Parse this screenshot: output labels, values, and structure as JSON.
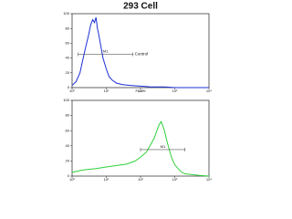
{
  "chart_data": [
    {
      "type": "line",
      "title": "293 Cell",
      "xlabel": "FL1-H",
      "xscale": "log",
      "xlim": [
        1,
        10000
      ],
      "ylim": [
        0,
        100
      ],
      "xticks": [
        {
          "value": 1,
          "label": "10⁰"
        },
        {
          "value": 10,
          "label": "10¹"
        },
        {
          "value": 100,
          "label": "10²"
        },
        {
          "value": 1000,
          "label": "10³"
        },
        {
          "value": 10000,
          "label": "10⁴"
        }
      ],
      "yticks": [
        0,
        20,
        40,
        60,
        80,
        100
      ],
      "x": [
        1,
        1.3,
        1.7,
        2,
        2.5,
        3,
        3.5,
        4,
        4.5,
        5,
        5.5,
        6,
        7,
        8,
        10,
        12,
        15,
        20,
        30,
        50,
        100,
        200,
        500,
        1000,
        10000
      ],
      "series": [
        {
          "color": "#1a2fd6",
          "values": [
            3,
            8,
            20,
            35,
            55,
            70,
            85,
            92,
            88,
            95,
            80,
            72,
            55,
            40,
            25,
            15,
            10,
            6,
            4,
            3,
            2,
            1,
            1,
            0,
            0
          ]
        }
      ],
      "gates": [
        {
          "label": "M1",
          "range": [
            1.5,
            60
          ],
          "level": 45,
          "note": "Control"
        }
      ]
    },
    {
      "type": "line",
      "xscale": "log",
      "xlim": [
        1,
        10000
      ],
      "ylim": [
        0,
        100
      ],
      "xticks": [
        {
          "value": 1,
          "label": "10⁰"
        },
        {
          "value": 10,
          "label": "10¹"
        },
        {
          "value": 100,
          "label": "10²"
        },
        {
          "value": 1000,
          "label": "10³"
        },
        {
          "value": 10000,
          "label": "10⁴"
        }
      ],
      "yticks": [
        0,
        20,
        40,
        60,
        80,
        100
      ],
      "x": [
        1,
        2,
        5,
        10,
        20,
        40,
        70,
        100,
        150,
        200,
        250,
        300,
        350,
        400,
        450,
        500,
        600,
        800,
        1000,
        1500,
        2000,
        5000,
        10000
      ],
      "series": [
        {
          "color": "#2fd13a",
          "values": [
            5,
            8,
            10,
            12,
            14,
            16,
            20,
            25,
            32,
            42,
            50,
            60,
            68,
            72,
            66,
            60,
            45,
            25,
            15,
            6,
            3,
            1,
            0
          ]
        }
      ],
      "gates": [
        {
          "label": "M1",
          "range": [
            100,
            2000
          ],
          "level": 35
        }
      ]
    }
  ]
}
